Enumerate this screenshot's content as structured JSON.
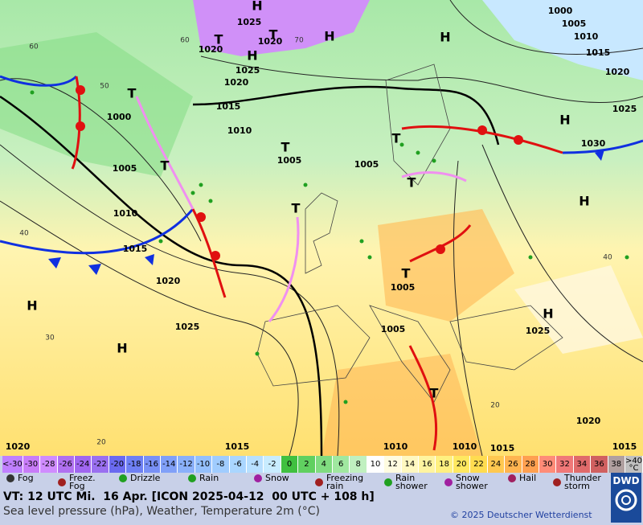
{
  "map_labels": [
    "H",
    "1025",
    "T",
    "H",
    "1020",
    "T",
    "1020",
    "H",
    "1025",
    "1020",
    "1015",
    "T",
    "1000",
    "1010",
    "T",
    "1005",
    "1005",
    "T",
    "1005",
    "1010",
    "1015",
    "1020",
    "T",
    "1025",
    "H",
    "H",
    "H",
    "1000",
    "1005",
    "1010",
    "1015",
    "1020",
    "1025",
    "H",
    "1030",
    "T",
    "T",
    "H",
    "T",
    "1005",
    "1005",
    "H",
    "1025",
    "1020",
    "1020",
    "1015",
    "1010",
    "1010",
    "1015",
    "1015",
    "T",
    "60",
    "50",
    "40",
    "30",
    "20",
    "60",
    "70",
    "40",
    "20"
  ],
  "temperature_scale": [
    {
      "label": "<-30",
      "color": "#c080ff"
    },
    {
      "label": "-30",
      "color": "#c87cf8"
    },
    {
      "label": "-28",
      "color": "#d08cff"
    },
    {
      "label": "-26",
      "color": "#b070f0"
    },
    {
      "label": "-24",
      "color": "#a066f0"
    },
    {
      "label": "-22",
      "color": "#9a70f0"
    },
    {
      "label": "-20",
      "color": "#6a6af0"
    },
    {
      "label": "-18",
      "color": "#6e80f4"
    },
    {
      "label": "-16",
      "color": "#7890f6"
    },
    {
      "label": "-14",
      "color": "#80a0f8"
    },
    {
      "label": "-12",
      "color": "#8ab0fa"
    },
    {
      "label": "-10",
      "color": "#94c0fc"
    },
    {
      "label": "-8",
      "color": "#a0ccfe"
    },
    {
      "label": "-6",
      "color": "#aad6ff"
    },
    {
      "label": "-4",
      "color": "#b8e0ff"
    },
    {
      "label": "-2",
      "color": "#c8ecff"
    },
    {
      "label": "0",
      "color": "#40c040"
    },
    {
      "label": "2",
      "color": "#60d060"
    },
    {
      "label": "4",
      "color": "#80dc80"
    },
    {
      "label": "6",
      "color": "#a0e8a0"
    },
    {
      "label": "8",
      "color": "#c0f0c0"
    },
    {
      "label": "10",
      "color": "#ffffff"
    },
    {
      "label": "12",
      "color": "#fffce0"
    },
    {
      "label": "14",
      "color": "#fff8c0"
    },
    {
      "label": "16",
      "color": "#fff4a0"
    },
    {
      "label": "18",
      "color": "#fff080"
    },
    {
      "label": "20",
      "color": "#ffe860"
    },
    {
      "label": "22",
      "color": "#ffdc50"
    },
    {
      "label": "24",
      "color": "#ffc850"
    },
    {
      "label": "26",
      "color": "#ffb450"
    },
    {
      "label": "28",
      "color": "#ffa050"
    },
    {
      "label": "30",
      "color": "#ff8c78"
    },
    {
      "label": "32",
      "color": "#f07878"
    },
    {
      "label": "34",
      "color": "#e06a6a"
    },
    {
      "label": "36",
      "color": "#d06060"
    },
    {
      "label": "38",
      "color": "#b0a0a0"
    },
    {
      "label": ">40 °C",
      "color": "#c0c0c0"
    }
  ],
  "weather_legend": [
    "Fog",
    "Freez. Fog",
    "Drizzle",
    "Rain",
    "Snow",
    "Freezing rain",
    "Rain shower",
    "Snow shower",
    "Hail",
    "Thunder storm"
  ],
  "footer": {
    "valid_time": "VT: 12 UTC Mi.  16 Apr. [ICON 2025-04-12  00 UTC + 108 h]",
    "subtitle": "Sea level pressure (hPa), Weather, Temperature 2m (°C)",
    "copyright": "© 2025 Deutscher Wetterdienst",
    "logo": "DWD"
  }
}
